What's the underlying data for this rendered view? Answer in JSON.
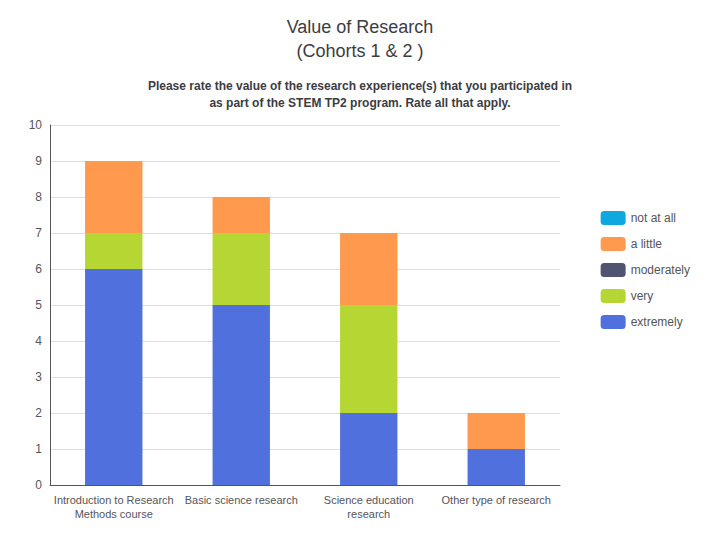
{
  "chart_data": {
    "type": "bar",
    "title": "Value of Research\n(Cohorts 1 & 2 )",
    "subtitle": "Please rate the value of the research experience(s) that you participated in\nas part of the STEM TP2 program. Rate all that apply.",
    "categories": [
      "Introduction to Research\nMethods course",
      "Basic science research",
      "Science education\nresearch",
      "Other type of research"
    ],
    "series": [
      {
        "name": "extremely",
        "values": [
          6,
          5,
          2,
          1
        ]
      },
      {
        "name": "very",
        "values": [
          1,
          2,
          3,
          0
        ]
      },
      {
        "name": "moderately",
        "values": [
          0,
          0,
          0,
          0
        ]
      },
      {
        "name": "a little",
        "values": [
          2,
          1,
          2,
          1
        ]
      },
      {
        "name": "not at all",
        "values": [
          0,
          0,
          0,
          0
        ]
      }
    ],
    "stacked": true,
    "ylim": [
      0,
      10
    ],
    "yticks": [
      0,
      1,
      2,
      3,
      4,
      5,
      6,
      7,
      8,
      9,
      10
    ],
    "grid": true,
    "legend": "right"
  }
}
